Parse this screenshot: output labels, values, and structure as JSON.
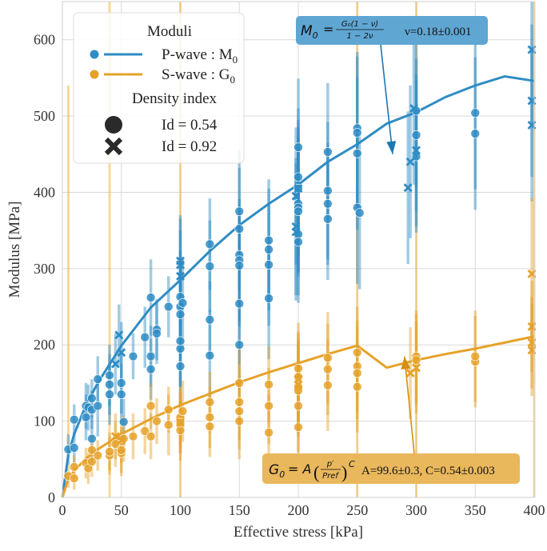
{
  "chart_data": {
    "type": "scatter",
    "xlabel": "Effective stress [kPa]",
    "ylabel": "Modulus [MPa]",
    "xlim": [
      0,
      400
    ],
    "ylim": [
      0,
      650
    ],
    "xticks": [
      0,
      50,
      100,
      150,
      200,
      250,
      300,
      350,
      400
    ],
    "yticks": [
      0,
      100,
      200,
      300,
      400,
      500,
      600
    ],
    "grid": true,
    "legend": {
      "placement": "top-left",
      "title": "Moduli",
      "entries": [
        {
          "label": "P-wave : M",
          "sub": "0",
          "color": "#2f8cc4"
        },
        {
          "label": "S-wave : G",
          "sub": "0",
          "color": "#e5a22a"
        }
      ],
      "marker_title": "Density index",
      "markers": [
        {
          "symbol": "circle",
          "label": "Id = 0.54"
        },
        {
          "symbol": "x",
          "label": "Id = 0.92"
        }
      ]
    },
    "annotations": {
      "p_wave": {
        "formula_lhs": "M",
        "formula_sub": "0",
        "formula_eq": "=",
        "formula_num": "G₀(1 − ν)",
        "formula_den": "1 − 2ν",
        "param_text": "ν=0.18±0.001",
        "color": "#5fa6d3",
        "arrow_to": [
          280,
          450
        ]
      },
      "s_wave": {
        "formula_lhs": "G",
        "formula_sub": "0",
        "formula_eq": "= A",
        "formula_num": "p′",
        "formula_den": "Pref",
        "formula_exp": "C",
        "param_text": "A=99.6±0.3, C=0.54±0.003",
        "color": "#e9b75c",
        "arrow_to": [
          290,
          185
        ]
      }
    },
    "series": [
      {
        "name": "P-wave : M0",
        "kind": "fit",
        "color": "#2f8cc4",
        "x": [
          0,
          5,
          10,
          20,
          30,
          50,
          75,
          100,
          125,
          150,
          175,
          200,
          225,
          250,
          275,
          300,
          325,
          350,
          375,
          400
        ],
        "y": [
          0,
          56,
          83,
          121,
          150,
          199,
          249,
          285,
          323,
          357,
          385,
          410,
          440,
          463,
          490,
          505,
          525,
          540,
          552,
          546
        ]
      },
      {
        "name": "S-wave : G0",
        "kind": "fit",
        "color": "#e5a22a",
        "x": [
          0,
          5,
          10,
          20,
          30,
          50,
          75,
          100,
          125,
          150,
          175,
          200,
          225,
          250,
          275,
          300,
          325,
          350,
          375,
          400
        ],
        "y": [
          0,
          24,
          35,
          51,
          63,
          83,
          103,
          121,
          136,
          151,
          164,
          176,
          188,
          199,
          170,
          180,
          188,
          195,
          203,
          211
        ]
      },
      {
        "name": "P-wave Id = 0.54",
        "kind": "points",
        "marker": "circle",
        "color": "#2f8cc4",
        "points": [
          [
            5,
            63,
            20
          ],
          [
            10,
            102,
            20
          ],
          [
            10,
            65,
            20
          ],
          [
            20,
            105,
            30
          ],
          [
            20,
            120,
            30
          ],
          [
            22,
            118,
            30
          ],
          [
            25,
            115,
            25
          ],
          [
            25,
            130,
            25
          ],
          [
            25,
            77,
            30
          ],
          [
            30,
            120,
            40
          ],
          [
            30,
            155,
            30
          ],
          [
            40,
            135,
            40
          ],
          [
            40,
            148,
            40
          ],
          [
            40,
            160,
            40
          ],
          [
            50,
            150,
            40
          ],
          [
            50,
            135,
            40
          ],
          [
            52,
            99,
            30
          ],
          [
            60,
            185,
            30
          ],
          [
            70,
            210,
            40
          ],
          [
            75,
            262,
            50
          ],
          [
            75,
            168,
            40
          ],
          [
            75,
            185,
            40
          ],
          [
            80,
            220,
            40
          ],
          [
            80,
            215,
            40
          ],
          [
            90,
            250,
            40
          ],
          [
            100,
            263,
            60
          ],
          [
            100,
            250,
            60
          ],
          [
            100,
            240,
            60
          ],
          [
            100,
            195,
            50
          ],
          [
            100,
            172,
            60
          ],
          [
            100,
            205,
            60
          ],
          [
            102,
            255,
            60
          ],
          [
            125,
            332,
            60
          ],
          [
            125,
            303,
            60
          ],
          [
            125,
            233,
            50
          ],
          [
            125,
            186,
            60
          ],
          [
            150,
            375,
            80
          ],
          [
            150,
            352,
            80
          ],
          [
            150,
            318,
            60
          ],
          [
            150,
            311,
            80
          ],
          [
            150,
            304,
            80
          ],
          [
            150,
            254,
            80
          ],
          [
            150,
            200,
            60
          ],
          [
            175,
            337,
            80
          ],
          [
            175,
            325,
            80
          ],
          [
            175,
            305,
            80
          ],
          [
            175,
            261,
            80
          ],
          [
            200,
            459,
            90
          ],
          [
            200,
            420,
            90
          ],
          [
            200,
            405,
            80
          ],
          [
            200,
            385,
            90
          ],
          [
            200,
            380,
            90
          ],
          [
            200,
            375,
            80
          ],
          [
            200,
            345,
            80
          ],
          [
            200,
            335,
            80
          ],
          [
            225,
            453,
            90
          ],
          [
            225,
            402,
            90
          ],
          [
            225,
            385,
            80
          ],
          [
            225,
            365,
            80
          ],
          [
            250,
            484,
            100
          ],
          [
            250,
            478,
            100
          ],
          [
            250,
            451,
            100
          ],
          [
            250,
            380,
            100
          ],
          [
            252,
            373,
            100
          ],
          [
            300,
            507,
            100
          ],
          [
            300,
            475,
            100
          ],
          [
            300,
            447,
            100
          ],
          [
            350,
            504,
            100
          ],
          [
            350,
            477,
            100
          ]
        ]
      },
      {
        "name": "P-wave Id = 0.92",
        "kind": "points",
        "marker": "x",
        "color": "#2f8cc4",
        "points": [
          [
            45,
            175,
            40
          ],
          [
            48,
            213,
            40
          ],
          [
            50,
            190,
            40
          ],
          [
            100,
            310,
            60
          ],
          [
            100,
            305,
            60
          ],
          [
            100,
            290,
            60
          ],
          [
            198,
            355,
            90
          ],
          [
            198,
            348,
            90
          ],
          [
            198,
            395,
            90
          ],
          [
            200,
            405,
            90
          ],
          [
            295,
            440,
            100
          ],
          [
            298,
            510,
            100
          ],
          [
            300,
            455,
            100
          ],
          [
            293,
            406,
            100
          ],
          [
            398,
            587,
            100
          ],
          [
            398,
            520,
            100
          ],
          [
            398,
            488,
            100
          ]
        ]
      },
      {
        "name": "S-wave Id = 0.54",
        "kind": "points",
        "marker": "circle",
        "color": "#e5a22a",
        "points": [
          [
            5,
            28,
            15
          ],
          [
            10,
            25,
            15
          ],
          [
            10,
            40,
            15
          ],
          [
            20,
            45,
            20
          ],
          [
            22,
            38,
            20
          ],
          [
            25,
            62,
            20
          ],
          [
            25,
            47,
            20
          ],
          [
            30,
            55,
            20
          ],
          [
            40,
            55,
            25
          ],
          [
            40,
            60,
            25
          ],
          [
            45,
            70,
            30
          ],
          [
            50,
            58,
            30
          ],
          [
            50,
            62,
            30
          ],
          [
            52,
            77,
            30
          ],
          [
            60,
            80,
            30
          ],
          [
            70,
            87,
            30
          ],
          [
            75,
            120,
            30
          ],
          [
            75,
            80,
            30
          ],
          [
            80,
            100,
            30
          ],
          [
            90,
            95,
            40
          ],
          [
            90,
            115,
            30
          ],
          [
            100,
            88,
            40
          ],
          [
            100,
            105,
            40
          ],
          [
            100,
            98,
            40
          ],
          [
            102,
            113,
            40
          ],
          [
            125,
            125,
            40
          ],
          [
            125,
            105,
            40
          ],
          [
            125,
            93,
            40
          ],
          [
            150,
            150,
            50
          ],
          [
            150,
            125,
            50
          ],
          [
            150,
            113,
            50
          ],
          [
            150,
            100,
            50
          ],
          [
            175,
            148,
            50
          ],
          [
            175,
            120,
            50
          ],
          [
            175,
            85,
            50
          ],
          [
            200,
            169,
            60
          ],
          [
            200,
            158,
            60
          ],
          [
            200,
            145,
            60
          ],
          [
            200,
            140,
            60
          ],
          [
            200,
            120,
            60
          ],
          [
            200,
            92,
            60
          ],
          [
            225,
            183,
            60
          ],
          [
            225,
            168,
            60
          ],
          [
            225,
            147,
            60
          ],
          [
            250,
            190,
            60
          ],
          [
            250,
            172,
            60
          ],
          [
            250,
            163,
            60
          ],
          [
            250,
            145,
            60
          ],
          [
            300,
            185,
            60
          ],
          [
            300,
            180,
            60
          ],
          [
            350,
            178,
            60
          ],
          [
            350,
            185,
            60
          ]
        ]
      },
      {
        "name": "S-wave Id = 0.92",
        "kind": "points",
        "marker": "x",
        "color": "#e5a22a",
        "points": [
          [
            45,
            80,
            30
          ],
          [
            50,
            75,
            30
          ],
          [
            100,
            98,
            40
          ],
          [
            200,
            148,
            60
          ],
          [
            200,
            155,
            60
          ],
          [
            295,
            163,
            60
          ],
          [
            300,
            170,
            60
          ],
          [
            398,
            293,
            100
          ],
          [
            398,
            224,
            60
          ],
          [
            398,
            203,
            60
          ],
          [
            398,
            193,
            60
          ]
        ]
      },
      {
        "name": "S-wave outlier bars",
        "kind": "vbars",
        "color": "#f0b74b",
        "x": [
          5,
          40,
          100,
          250,
          300,
          400
        ],
        "y": [
          300,
          300,
          300,
          300,
          300,
          300
        ],
        "err": [
          240,
          400,
          400,
          400,
          400,
          400
        ]
      }
    ]
  }
}
